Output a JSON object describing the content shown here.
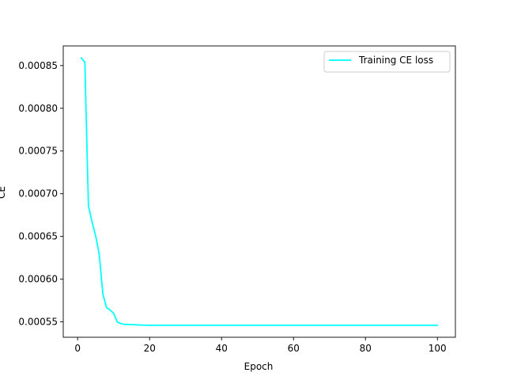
{
  "chart_data": {
    "type": "line",
    "title": "",
    "xlabel": "Epoch",
    "ylabel": "CE",
    "xlim": [
      -4,
      105
    ],
    "ylim": [
      0.000532,
      0.000873
    ],
    "xticks": [
      0,
      20,
      40,
      60,
      80,
      100
    ],
    "yticks": [
      0.00055,
      0.0006,
      0.00065,
      0.0007,
      0.00075,
      0.0008,
      0.00085
    ],
    "ytick_labels": [
      "0.00055",
      "0.00060",
      "0.00065",
      "0.00070",
      "0.00075",
      "0.00080",
      "0.00085"
    ],
    "grid": false,
    "legend_position": "top-right",
    "series": [
      {
        "name": "Training CE loss",
        "color": "#00ffff",
        "x": [
          1,
          2,
          3,
          4,
          5,
          6,
          7,
          8,
          9,
          10,
          11,
          12,
          13,
          14,
          15,
          16,
          17,
          18,
          19,
          20,
          21,
          22,
          25,
          30,
          40,
          50,
          60,
          70,
          80,
          90,
          100
        ],
        "y": [
          0.000859,
          0.000854,
          0.000686,
          0.000667,
          0.000651,
          0.000629,
          0.000583,
          0.000567,
          0.000564,
          0.00056,
          0.00055,
          0.000548,
          0.000547,
          0.000547,
          0.0005468,
          0.0005466,
          0.0005464,
          0.0005462,
          0.0005461,
          0.000546,
          0.000546,
          0.000546,
          0.000546,
          0.000546,
          0.000546,
          0.000546,
          0.000546,
          0.000546,
          0.000546,
          0.000546,
          0.000546
        ]
      }
    ]
  }
}
